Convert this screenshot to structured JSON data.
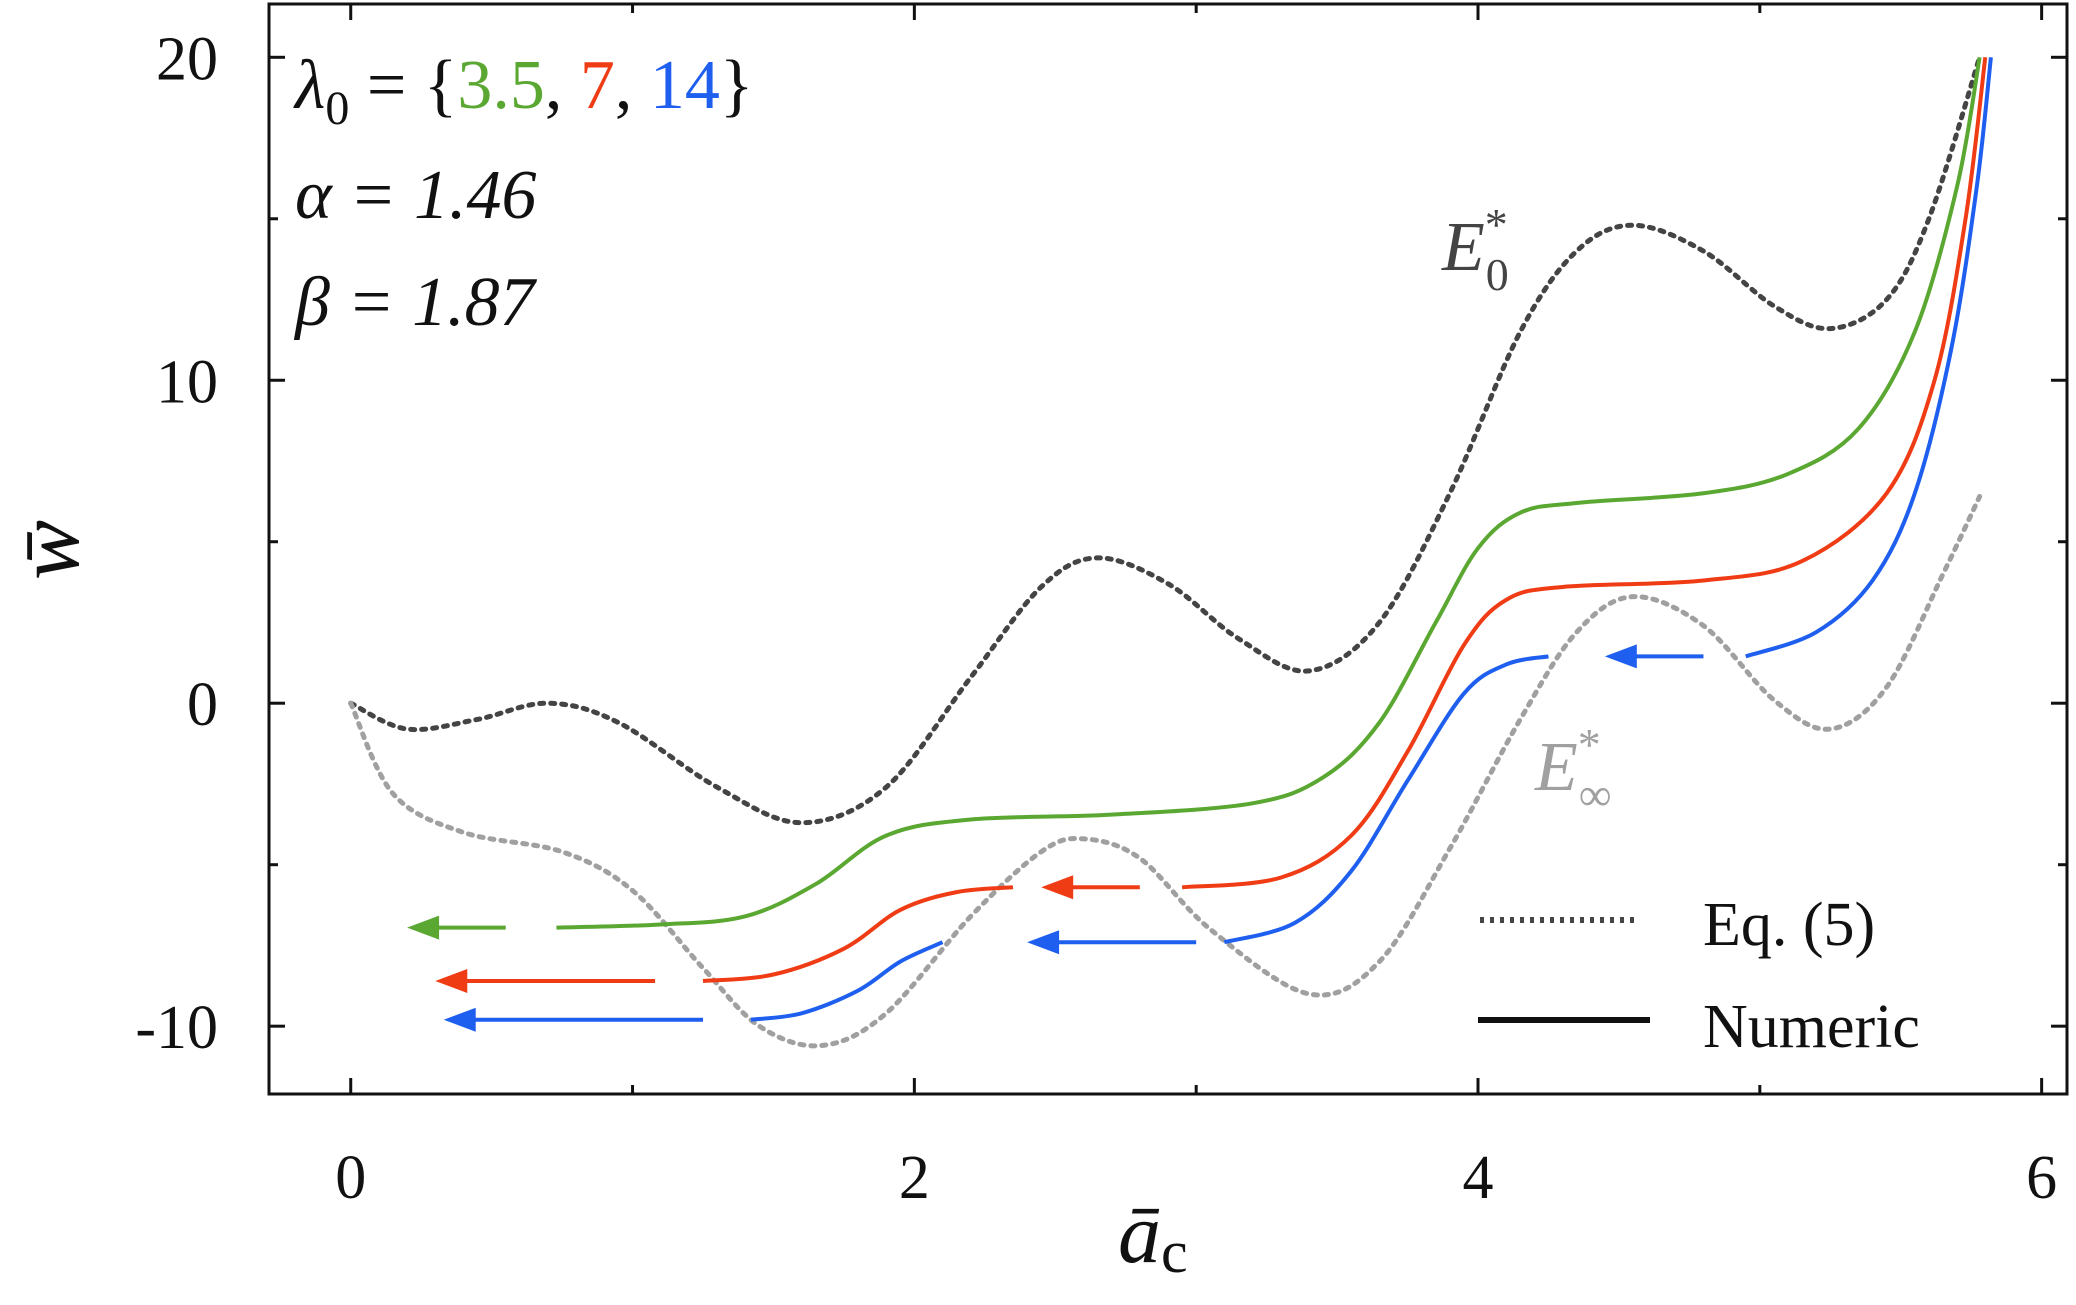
{
  "chart_data": {
    "type": "line",
    "xlabel": "ā",
    "xlabel_sub": "c",
    "ylabel": "w̄",
    "xlim": [
      -0.29,
      6.09
    ],
    "ylim": [
      -12.1,
      21.65
    ],
    "xticks": [
      "0",
      "2",
      "4",
      "6"
    ],
    "xtick_values": [
      0,
      2,
      4,
      6
    ],
    "xminor": [
      1,
      3,
      5
    ],
    "yticks": [
      "20",
      "10",
      "0",
      "-10"
    ],
    "ytick_values": [
      20,
      10,
      0,
      -10
    ],
    "yminor": [
      15,
      5,
      -5
    ],
    "grid": false,
    "annotation": {
      "lambda_prefix": "λ",
      "lambda_sub": "0",
      "lambda_eq": " = {",
      "lambda_values": [
        "3.5",
        "7",
        "14"
      ],
      "comma": ", ",
      "close": "}",
      "alpha": "α = 1.46",
      "beta": "β = 1.87"
    },
    "curve_labels": {
      "E0": {
        "base": "E",
        "sup": "*",
        "sub": "0"
      },
      "Einf": {
        "base": "E",
        "sup": "*",
        "sub": "∞"
      }
    },
    "legend": {
      "placement": "bottom-right",
      "entries": [
        {
          "label": "Eq. (5)",
          "style": "dotted"
        },
        {
          "label": "Numeric",
          "style": "solid"
        }
      ]
    },
    "colors": {
      "green": "#5aa832",
      "red": "#f03c14",
      "blue": "#1e5ff0",
      "E0": "#444444",
      "Einf": "#a0a0a0"
    },
    "dotted_series": [
      {
        "key": "E0",
        "color": "#444444",
        "points": [
          [
            0,
            0
          ],
          [
            0.2,
            -0.8
          ],
          [
            0.45,
            -0.5
          ],
          [
            0.7,
            0
          ],
          [
            0.95,
            -0.6
          ],
          [
            1.3,
            -2.6
          ],
          [
            1.6,
            -3.7
          ],
          [
            1.9,
            -2.6
          ],
          [
            2.2,
            0.8
          ],
          [
            2.45,
            3.6
          ],
          [
            2.65,
            4.5
          ],
          [
            2.9,
            3.7
          ],
          [
            3.15,
            2
          ],
          [
            3.4,
            1
          ],
          [
            3.65,
            2.5
          ],
          [
            3.9,
            6.5
          ],
          [
            4.15,
            11.5
          ],
          [
            4.35,
            14
          ],
          [
            4.55,
            14.8
          ],
          [
            4.8,
            14
          ],
          [
            5.05,
            12.3
          ],
          [
            5.25,
            11.6
          ],
          [
            5.45,
            12.5
          ],
          [
            5.6,
            15
          ],
          [
            5.78,
            20
          ]
        ]
      },
      {
        "key": "Einf",
        "color": "#a0a0a0",
        "points": [
          [
            0,
            0
          ],
          [
            0.15,
            -2.8
          ],
          [
            0.4,
            -4
          ],
          [
            0.75,
            -4.6
          ],
          [
            1.0,
            -5.8
          ],
          [
            1.25,
            -8.2
          ],
          [
            1.45,
            -10
          ],
          [
            1.67,
            -10.6
          ],
          [
            1.9,
            -9.6
          ],
          [
            2.2,
            -6.6
          ],
          [
            2.45,
            -4.6
          ],
          [
            2.6,
            -4.2
          ],
          [
            2.8,
            -4.8
          ],
          [
            3.05,
            -7
          ],
          [
            3.4,
            -9
          ],
          [
            3.65,
            -8
          ],
          [
            3.9,
            -4.5
          ],
          [
            4.15,
            -0.5
          ],
          [
            4.35,
            2.2
          ],
          [
            4.55,
            3.3
          ],
          [
            4.8,
            2.4
          ],
          [
            5.05,
            0.1
          ],
          [
            5.25,
            -0.8
          ],
          [
            5.45,
            0.5
          ],
          [
            5.65,
            4
          ],
          [
            5.78,
            6.4
          ]
        ]
      }
    ],
    "numeric_series": [
      {
        "key": "3.5",
        "color": "#5aa832",
        "segments": [
          [
            [
              0.73,
              -6.95
            ],
            [
              1.1,
              -6.85
            ],
            [
              1.4,
              -6.6
            ],
            [
              1.65,
              -5.6
            ],
            [
              1.9,
              -4.1
            ],
            [
              2.2,
              -3.6
            ],
            [
              2.7,
              -3.45
            ],
            [
              3.2,
              -3.1
            ],
            [
              3.45,
              -2.3
            ],
            [
              3.65,
              -0.6
            ],
            [
              3.85,
              2.5
            ],
            [
              4.0,
              4.8
            ],
            [
              4.15,
              5.9
            ],
            [
              4.35,
              6.2
            ],
            [
              4.8,
              6.5
            ],
            [
              5.1,
              7.1
            ],
            [
              5.35,
              8.5
            ],
            [
              5.55,
              11.5
            ],
            [
              5.7,
              16
            ],
            [
              5.78,
              20
            ]
          ]
        ],
        "jumps": [
          {
            "from": 0.55,
            "to": 0.2,
            "y": -6.95
          }
        ]
      },
      {
        "key": "7",
        "color": "#f03c14",
        "segments": [
          [
            [
              1.25,
              -8.6
            ],
            [
              1.5,
              -8.4
            ],
            [
              1.75,
              -7.6
            ],
            [
              1.95,
              -6.4
            ],
            [
              2.15,
              -5.85
            ],
            [
              2.35,
              -5.7
            ]
          ],
          [
            [
              2.95,
              -5.7
            ],
            [
              3.3,
              -5.4
            ],
            [
              3.55,
              -4.1
            ],
            [
              3.75,
              -1.5
            ],
            [
              3.95,
              1.8
            ],
            [
              4.1,
              3.2
            ],
            [
              4.3,
              3.6
            ],
            [
              4.8,
              3.8
            ],
            [
              5.15,
              4.4
            ],
            [
              5.45,
              6.5
            ],
            [
              5.62,
              10
            ],
            [
              5.73,
              15
            ],
            [
              5.8,
              20
            ]
          ]
        ],
        "jumps": [
          {
            "from": 1.08,
            "to": 0.3,
            "y": -8.6
          },
          {
            "from": 2.8,
            "to": 2.45,
            "y": -5.7
          }
        ]
      },
      {
        "key": "14",
        "color": "#1e5ff0",
        "segments": [
          [
            [
              1.42,
              -9.8
            ],
            [
              1.6,
              -9.6
            ],
            [
              1.8,
              -8.9
            ],
            [
              1.95,
              -8
            ],
            [
              2.1,
              -7.4
            ]
          ],
          [
            [
              3.1,
              -7.4
            ],
            [
              3.35,
              -6.8
            ],
            [
              3.55,
              -5.2
            ],
            [
              3.75,
              -2.4
            ],
            [
              3.95,
              0.3
            ],
            [
              4.1,
              1.2
            ],
            [
              4.25,
              1.45
            ]
          ],
          [
            [
              4.95,
              1.45
            ],
            [
              5.2,
              2.2
            ],
            [
              5.4,
              3.8
            ],
            [
              5.55,
              6.5
            ],
            [
              5.68,
              11
            ],
            [
              5.77,
              16
            ],
            [
              5.82,
              20
            ]
          ]
        ],
        "jumps": [
          {
            "from": 1.25,
            "to": 0.33,
            "y": -9.8
          },
          {
            "from": 3.0,
            "to": 2.4,
            "y": -7.4
          },
          {
            "from": 4.8,
            "to": 4.45,
            "y": 1.45
          }
        ]
      }
    ]
  }
}
